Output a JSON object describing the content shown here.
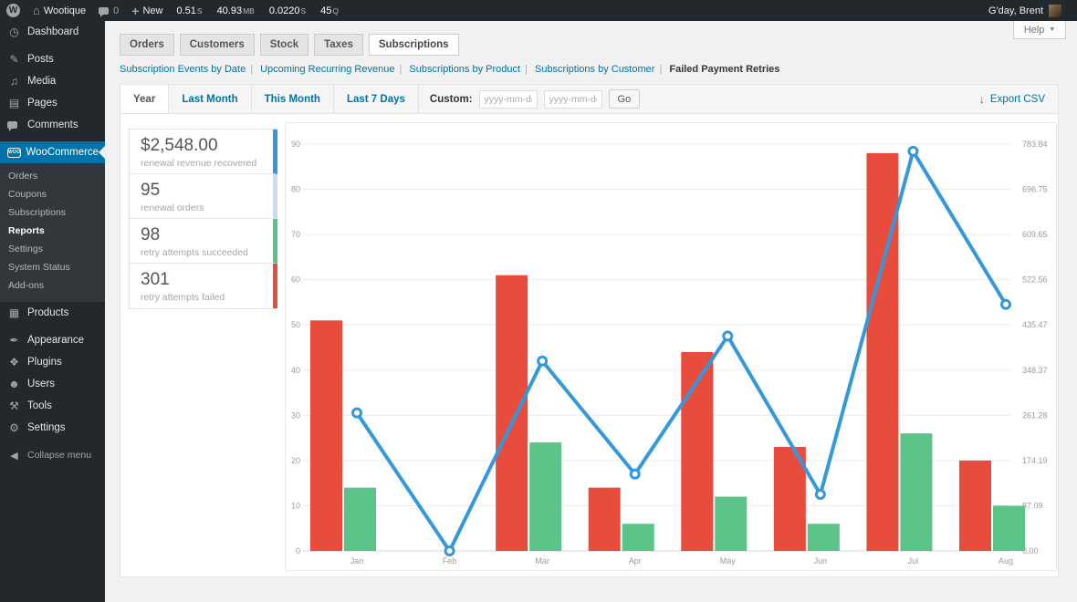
{
  "admin_bar": {
    "wp_logo": "W",
    "site_name": "Wootique",
    "comments_count": "0",
    "new_button": "New",
    "perf_stats": [
      {
        "value": "0.51",
        "unit": "S"
      },
      {
        "value": "40.93",
        "unit": "MB"
      },
      {
        "value": "0.0220",
        "unit": "S"
      },
      {
        "value": "45",
        "unit": "Q"
      }
    ],
    "greeting": "G'day, Brent"
  },
  "help_button": {
    "label": "Help"
  },
  "sidebar": {
    "top_items": [
      {
        "label": "Dashboard"
      },
      {
        "label": "Posts"
      },
      {
        "label": "Media"
      },
      {
        "label": "Pages"
      },
      {
        "label": "Comments"
      }
    ],
    "woocommerce": {
      "label": "WooCommerce",
      "submenu": [
        {
          "label": "Orders"
        },
        {
          "label": "Coupons"
        },
        {
          "label": "Subscriptions"
        },
        {
          "label": "Reports"
        },
        {
          "label": "Settings"
        },
        {
          "label": "System Status"
        },
        {
          "label": "Add-ons"
        }
      ]
    },
    "bottom_items": [
      {
        "label": "Products"
      },
      {
        "label": "Appearance"
      },
      {
        "label": "Plugins"
      },
      {
        "label": "Users"
      },
      {
        "label": "Tools"
      },
      {
        "label": "Settings"
      }
    ],
    "collapse": {
      "label": "Collapse menu"
    }
  },
  "report_tabs": [
    {
      "label": "Orders"
    },
    {
      "label": "Customers"
    },
    {
      "label": "Stock"
    },
    {
      "label": "Taxes"
    },
    {
      "label": "Subscriptions"
    }
  ],
  "report_subnav": [
    {
      "label": "Subscription Events by Date"
    },
    {
      "label": "Upcoming Recurring Revenue"
    },
    {
      "label": "Subscriptions by Product"
    },
    {
      "label": "Subscriptions by Customer"
    },
    {
      "label": "Failed Payment Retries"
    }
  ],
  "range_tabs": [
    {
      "label": "Year"
    },
    {
      "label": "Last Month"
    },
    {
      "label": "This Month"
    },
    {
      "label": "Last 7 Days"
    }
  ],
  "custom_range": {
    "label": "Custom:",
    "from_placeholder": "yyyy-mm-dd",
    "to_placeholder": "yyyy-mm-dd",
    "go_label": "Go"
  },
  "export_csv": {
    "label": "Export CSV"
  },
  "summary": {
    "items": [
      {
        "value": "$2,548.00",
        "label": "renewal revenue recovered",
        "color": "#3498db"
      },
      {
        "value": "95",
        "label": "renewal orders",
        "color": "#c8ddf0"
      },
      {
        "value": "98",
        "label": "retry attempts succeeded",
        "color": "#5cc488"
      },
      {
        "value": "301",
        "label": "retry attempts failed",
        "color": "#e74c3c"
      }
    ]
  },
  "chart_data": {
    "type": "bar",
    "subtype": "bar-and-line-combo",
    "categories": [
      "Jan",
      "Feb",
      "Mar",
      "Apr",
      "May",
      "Jun",
      "Jul",
      "Aug"
    ],
    "series": [
      {
        "name": "retry attempts failed",
        "render": "bar",
        "axis": "left",
        "color": "#e74c3c",
        "values": [
          51,
          0,
          61,
          14,
          44,
          23,
          88,
          20
        ]
      },
      {
        "name": "retry attempts succeeded",
        "render": "bar",
        "axis": "left",
        "color": "#5cc488",
        "values": [
          14,
          0,
          24,
          6,
          12,
          6,
          26,
          10
        ]
      },
      {
        "name": "renewal revenue recovered",
        "render": "line",
        "axis": "right",
        "color": "#3498db",
        "values": [
          266,
          0,
          366,
          148,
          414,
          109,
          770,
          475
        ]
      }
    ],
    "left_axis": {
      "max": 90,
      "ticks": [
        0,
        10,
        20,
        30,
        40,
        50,
        60,
        70,
        80,
        90
      ]
    },
    "right_axis": {
      "max": 783.84,
      "ticks": [
        "0.00",
        "87.09",
        "174.19",
        "261.28",
        "348.37",
        "435.47",
        "522.56",
        "609.65",
        "696.75",
        "783.84"
      ]
    },
    "grid": true,
    "legend_position": "none"
  }
}
